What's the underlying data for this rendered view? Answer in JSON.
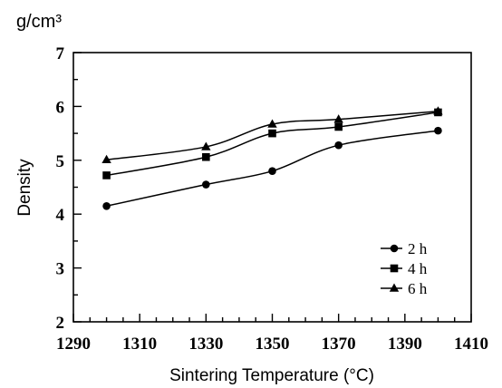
{
  "chart_data": {
    "type": "line",
    "unit_label": "g/cm³",
    "xlabel": "Sintering Temperature (°C)",
    "ylabel": "Density",
    "xlim": [
      1290,
      1410
    ],
    "ylim": [
      2,
      7
    ],
    "xticks": [
      1290,
      1310,
      1330,
      1350,
      1370,
      1390,
      1410
    ],
    "yticks": [
      2,
      3,
      4,
      5,
      6,
      7
    ],
    "grid": false,
    "legend_position": "lower-right",
    "series": [
      {
        "name": "2 h",
        "marker": "circle",
        "x": [
          1300,
          1330,
          1350,
          1370,
          1400
        ],
        "y": [
          4.15,
          4.55,
          4.8,
          5.28,
          5.55
        ]
      },
      {
        "name": "4 h",
        "marker": "square",
        "x": [
          1300,
          1330,
          1350,
          1370,
          1400
        ],
        "y": [
          4.72,
          5.06,
          5.5,
          5.62,
          5.89
        ]
      },
      {
        "name": "6 h",
        "marker": "triangle",
        "x": [
          1300,
          1330,
          1350,
          1370,
          1400
        ],
        "y": [
          5.01,
          5.25,
          5.67,
          5.76,
          5.91
        ]
      }
    ]
  }
}
